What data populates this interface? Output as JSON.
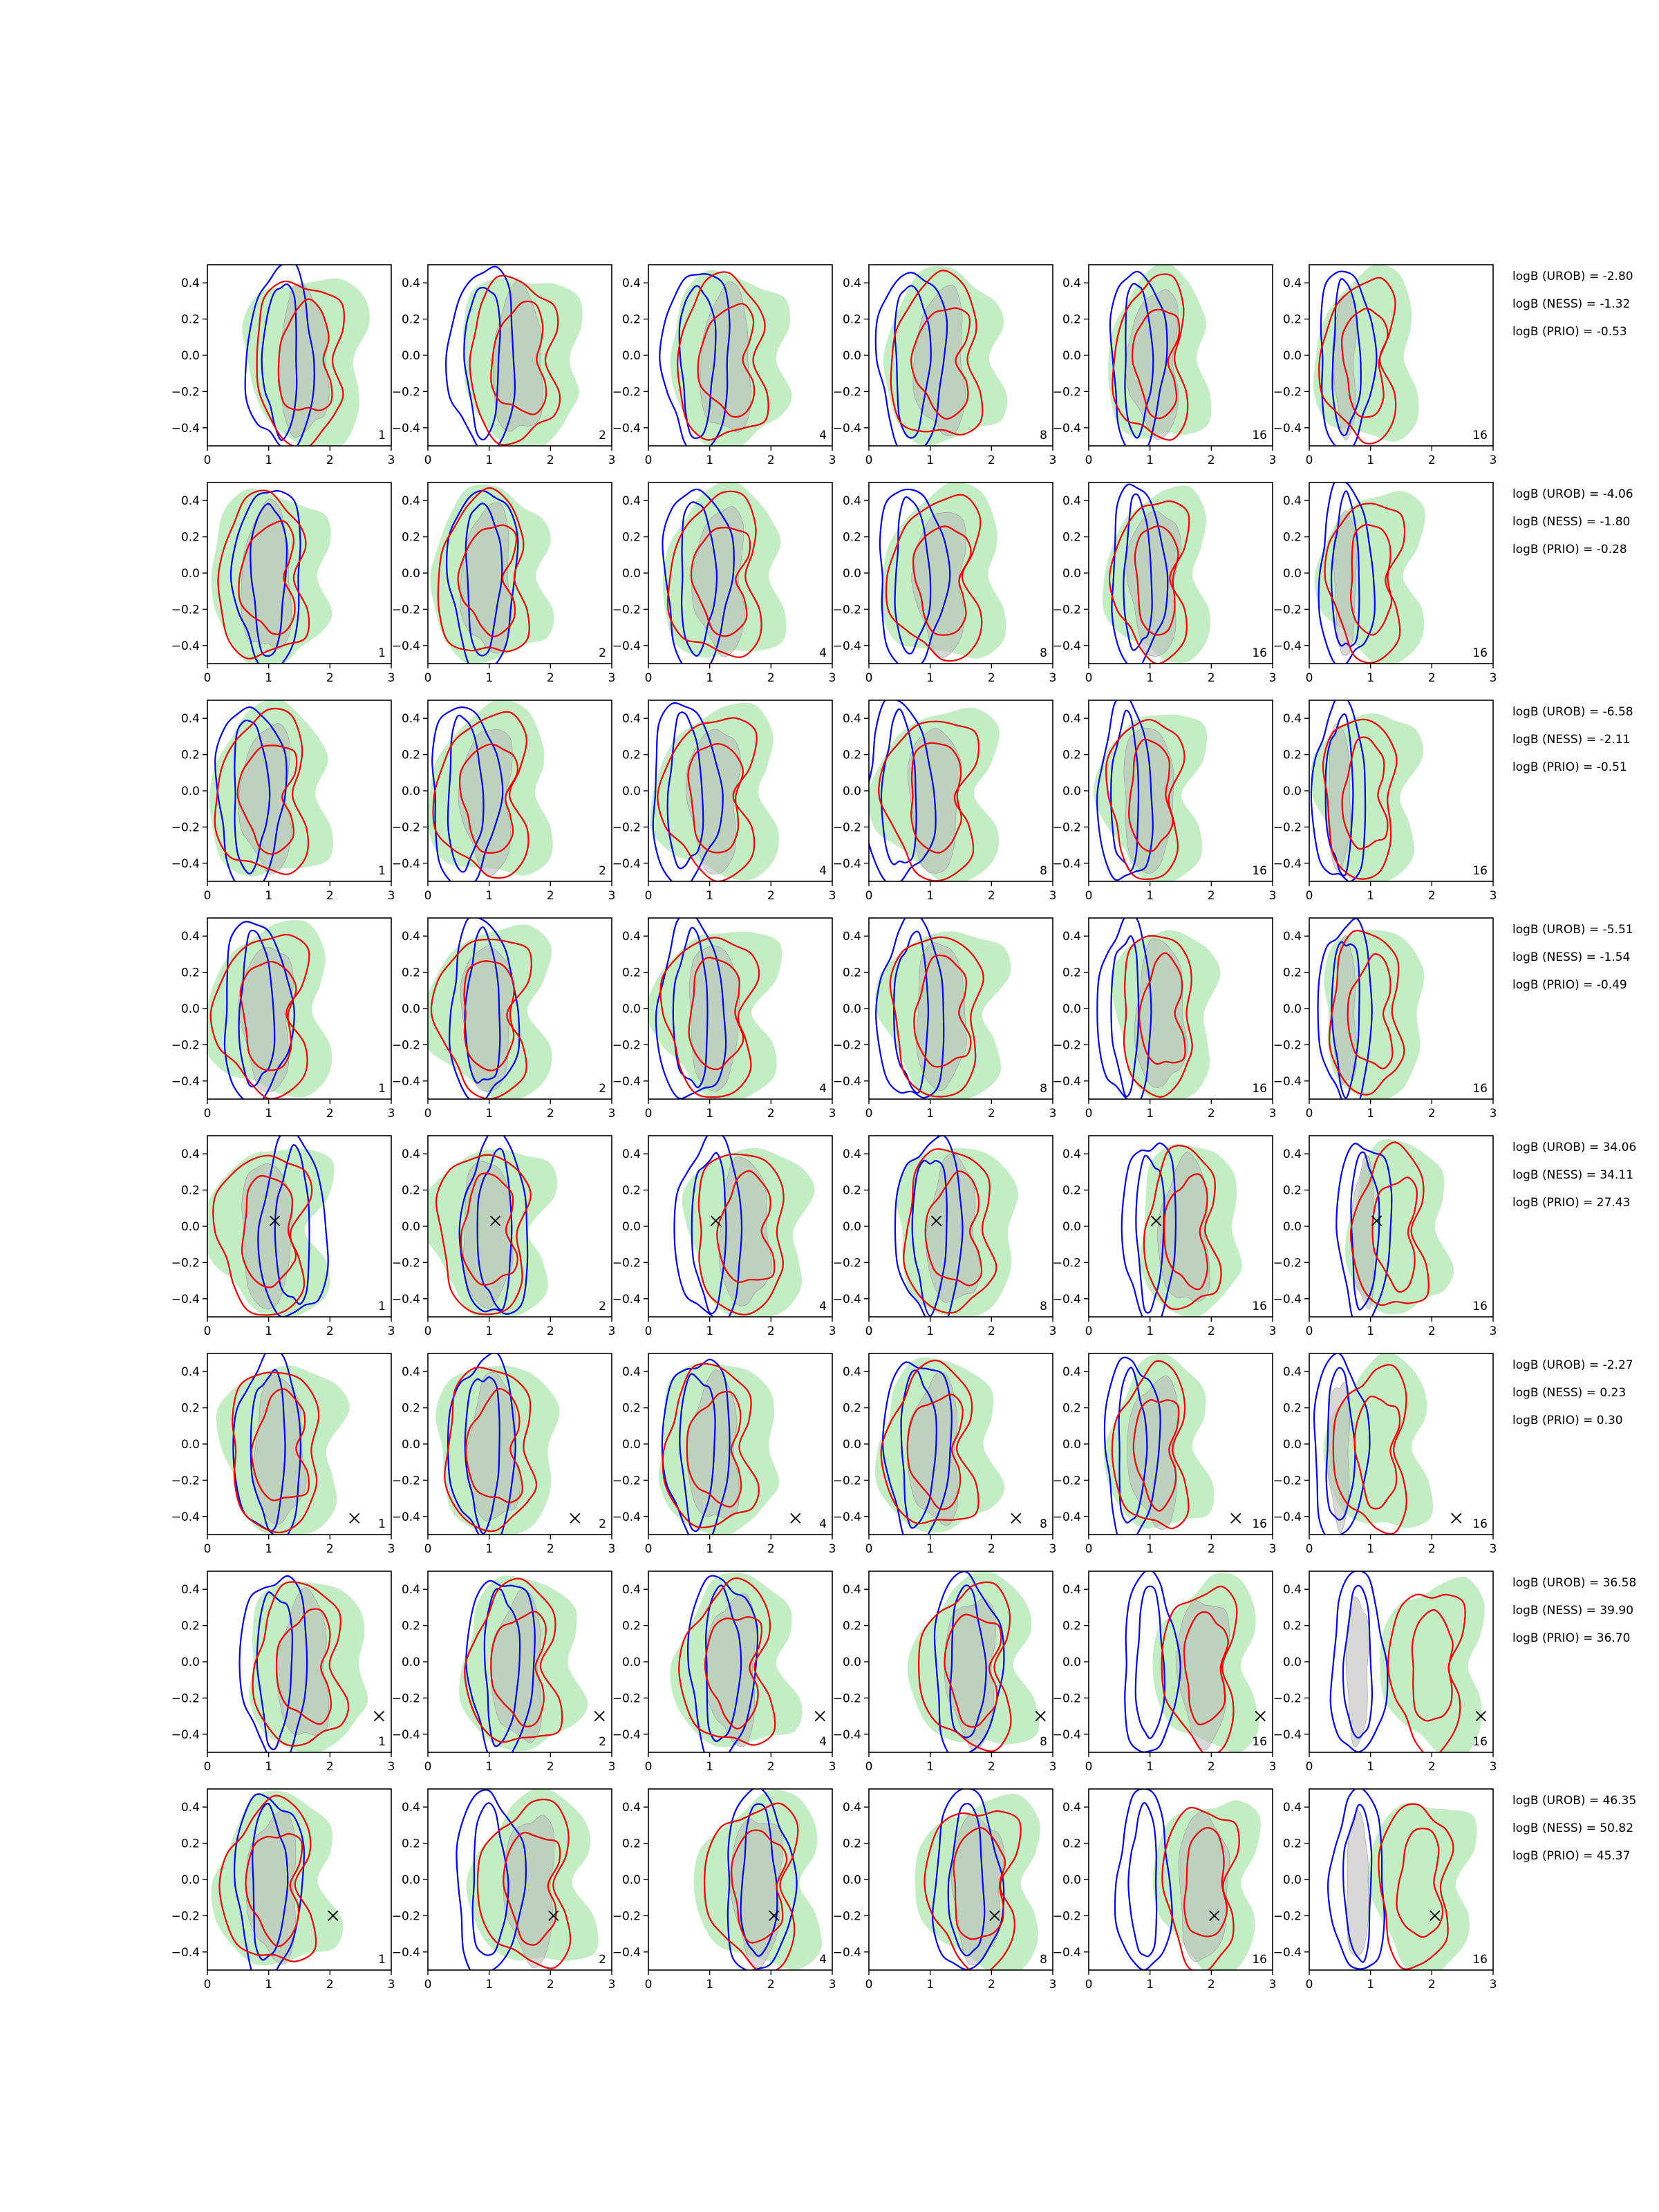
{
  "figure": {
    "rows": 8,
    "cols": 6,
    "colors": {
      "green_fill": "#a6e3a6",
      "grey_fill": "#b8b8b8",
      "blue_line": "#0000ee",
      "red_line": "#ee0000",
      "marker": "#000000"
    }
  },
  "chart_data": {
    "type": "contour",
    "xlim": [
      0,
      3
    ],
    "ylim": [
      -0.5,
      0.5
    ],
    "xticks": [
      "0",
      "1",
      "2",
      "3"
    ],
    "yticks": [
      "0.4",
      "0.2",
      "0.0",
      "−0.2",
      "−0.4"
    ],
    "panel_labels": [
      "1",
      "2",
      "4",
      "8",
      "16",
      "16"
    ],
    "rows": [
      {
        "bayes_factors": [
          {
            "label": "logB (UROB)",
            "text": "logB (UROB) = -2.80"
          },
          {
            "label": "logB (NESS)",
            "text": "logB (NESS) = -1.32"
          },
          {
            "label": "logB (PRIO)",
            "text": "logB (PRIO) = -0.53"
          }
        ],
        "truth": null,
        "red_centers": [
          1.6,
          1.5,
          1.3,
          1.2,
          1.1,
          0.9
        ],
        "blue_centers": [
          1.2,
          0.9,
          0.8,
          0.7,
          0.8,
          0.6
        ]
      },
      {
        "bayes_factors": [
          {
            "label": "logB (UROB)",
            "text": "logB (UROB) = -4.06"
          },
          {
            "label": "logB (NESS)",
            "text": "logB (NESS) = -1.80"
          },
          {
            "label": "logB (PRIO)",
            "text": "logB (PRIO) = -0.28"
          }
        ],
        "truth": null,
        "red_centers": [
          1.0,
          1.0,
          1.2,
          1.2,
          1.1,
          1.0
        ],
        "blue_centers": [
          1.0,
          0.9,
          0.8,
          0.7,
          0.8,
          0.6
        ]
      },
      {
        "bayes_factors": [
          {
            "label": "logB (UROB)",
            "text": "logB (UROB) = -6.58"
          },
          {
            "label": "logB (NESS)",
            "text": "logB (NESS) = -2.11"
          },
          {
            "label": "logB (PRIO)",
            "text": "logB (PRIO) = -0.51"
          }
        ],
        "truth": null,
        "red_centers": [
          1.0,
          1.0,
          1.1,
          1.1,
          1.0,
          0.9
        ],
        "blue_centers": [
          0.7,
          0.6,
          0.6,
          0.5,
          0.6,
          0.5
        ]
      },
      {
        "bayes_factors": [
          {
            "label": "logB (UROB)",
            "text": "logB (UROB) = -5.51"
          },
          {
            "label": "logB (NESS)",
            "text": "logB (NESS) = -1.54"
          },
          {
            "label": "logB (PRIO)",
            "text": "logB (PRIO) = -0.49"
          }
        ],
        "truth": null,
        "red_centers": [
          1.0,
          1.0,
          1.1,
          1.2,
          1.2,
          1.0
        ],
        "blue_centers": [
          0.8,
          0.9,
          0.7,
          0.7,
          0.6,
          0.6
        ]
      },
      {
        "bayes_factors": [
          {
            "label": "logB (UROB)",
            "text": "logB (UROB) = 34.06"
          },
          {
            "label": "logB (NESS)",
            "text": "logB (NESS) = 34.11"
          },
          {
            "label": "logB (PRIO)",
            "text": "logB (PRIO) = 27.43"
          }
        ],
        "truth": [
          1.1,
          0.03
        ],
        "red_centers": [
          1.0,
          1.0,
          1.6,
          1.4,
          1.6,
          1.4
        ],
        "blue_centers": [
          1.4,
          1.1,
          1.0,
          1.0,
          1.0,
          0.9
        ]
      },
      {
        "bayes_factors": [
          {
            "label": "logB (UROB)",
            "text": "logB (UROB) = -2.27"
          },
          {
            "label": "logB (NESS)",
            "text": "logB (NESS) = 0.23"
          },
          {
            "label": "logB (PRIO)",
            "text": "logB (PRIO) = 0.30"
          }
        ],
        "truth": [
          2.4,
          -0.41
        ],
        "red_centers": [
          1.2,
          1.1,
          1.1,
          1.1,
          1.1,
          1.1
        ],
        "blue_centers": [
          1.0,
          0.9,
          0.8,
          0.8,
          0.7,
          0.5
        ]
      },
      {
        "bayes_factors": [
          {
            "label": "logB (UROB)",
            "text": "logB (UROB) = 36.58"
          },
          {
            "label": "logB (NESS)",
            "text": "logB (NESS) = 39.90"
          },
          {
            "label": "logB (PRIO)",
            "text": "logB (PRIO) = 36.70"
          }
        ],
        "truth": [
          2.8,
          -0.3
        ],
        "red_centers": [
          1.6,
          1.5,
          1.4,
          1.7,
          1.9,
          2.0
        ],
        "blue_centers": [
          1.1,
          1.2,
          1.2,
          1.6,
          1.0,
          0.8
        ]
      },
      {
        "bayes_factors": [
          {
            "label": "logB (UROB)",
            "text": "logB (UROB) = 46.35"
          },
          {
            "label": "logB (NESS)",
            "text": "logB (NESS) = 50.82"
          },
          {
            "label": "logB (PRIO)",
            "text": "logB (PRIO) = 45.37"
          }
        ],
        "truth": [
          2.05,
          -0.2
        ],
        "red_centers": [
          1.1,
          1.7,
          1.8,
          1.8,
          1.9,
          1.8
        ],
        "blue_centers": [
          1.0,
          1.0,
          1.8,
          1.6,
          0.9,
          0.8
        ]
      }
    ]
  }
}
